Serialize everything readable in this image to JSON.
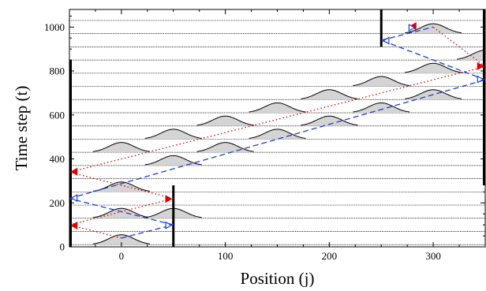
{
  "chart_data": {
    "type": "line",
    "xlabel": "Position (j)",
    "ylabel": "Time step (t)",
    "xlim": [
      -50,
      350
    ],
    "ylim": [
      0,
      1080
    ],
    "xticks": [
      0,
      100,
      200,
      300
    ],
    "yticks": [
      0,
      200,
      400,
      600,
      800,
      1000
    ],
    "minor_xtick_step": 25,
    "minor_ytick_step": 50,
    "grid": false,
    "baseline_times": [
      10,
      70,
      130,
      190,
      250,
      310,
      370,
      430,
      490,
      550,
      610,
      670,
      730,
      790,
      850,
      910,
      970,
      1030
    ],
    "pulse_peak_height_t": 45,
    "pulse_width_j": 12,
    "pulses": [
      {
        "t": 10,
        "x": 0
      },
      {
        "t": 130,
        "x": 0
      },
      {
        "t": 130,
        "x": 50
      },
      {
        "t": 250,
        "x": 0
      },
      {
        "t": 370,
        "x": 50
      },
      {
        "t": 430,
        "x": 0
      },
      {
        "t": 430,
        "x": 100
      },
      {
        "t": 490,
        "x": 50
      },
      {
        "t": 490,
        "x": 150
      },
      {
        "t": 550,
        "x": 100
      },
      {
        "t": 550,
        "x": 200
      },
      {
        "t": 610,
        "x": 150
      },
      {
        "t": 610,
        "x": 250
      },
      {
        "t": 670,
        "x": 200
      },
      {
        "t": 670,
        "x": 300
      },
      {
        "t": 730,
        "x": 250
      },
      {
        "t": 790,
        "x": 300
      },
      {
        "t": 850,
        "x": 350
      },
      {
        "t": 970,
        "x": 300
      }
    ],
    "walls": [
      {
        "x": -50,
        "t_from": 0,
        "t_to": 850
      },
      {
        "x": 50,
        "t_from": 0,
        "t_to": 280
      },
      {
        "x": 250,
        "t_from": 910,
        "t_to": 1080
      },
      {
        "x": 350,
        "t_from": 280,
        "t_to": 1080
      }
    ],
    "series": [
      {
        "color": "#dd0000",
        "style": "dotted",
        "marker": "filled-triangle",
        "segments": [
          {
            "from": [
              0,
              40
            ],
            "to": [
              -50,
              100
            ]
          },
          {
            "from": [
              -50,
              100
            ],
            "to": [
              50,
              220
            ]
          },
          {
            "from": [
              50,
              220
            ],
            "to": [
              -50,
              340
            ]
          },
          {
            "from": [
              -50,
              340
            ],
            "to": [
              350,
              820
            ]
          },
          {
            "from": [
              350,
              820
            ],
            "to": [
              300,
              1000
            ]
          }
        ]
      },
      {
        "color": "#1f3fd0",
        "style": "dashed",
        "marker": "open-triangle",
        "segments": [
          {
            "from": [
              0,
              40
            ],
            "to": [
              50,
              100
            ]
          },
          {
            "from": [
              50,
              100
            ],
            "to": [
              -50,
              220
            ]
          },
          {
            "from": [
              -50,
              220
            ],
            "to": [
              350,
              760
            ]
          },
          {
            "from": [
              350,
              760
            ],
            "to": [
              250,
              940
            ]
          },
          {
            "from": [
              250,
              940
            ],
            "to": [
              300,
              1000
            ]
          }
        ]
      }
    ],
    "arrowheads": [
      {
        "series": 0,
        "x": -48,
        "t": 97,
        "dir": "left"
      },
      {
        "series": 0,
        "x": 48,
        "t": 218,
        "dir": "right"
      },
      {
        "series": 0,
        "x": -48,
        "t": 342,
        "dir": "left"
      },
      {
        "series": 0,
        "x": 348,
        "t": 822,
        "dir": "right"
      },
      {
        "series": 0,
        "x": 278,
        "t": 1004,
        "dir": "left"
      },
      {
        "series": 1,
        "x": 48,
        "t": 98,
        "dir": "right"
      },
      {
        "series": 1,
        "x": -48,
        "t": 222,
        "dir": "left"
      },
      {
        "series": 1,
        "x": 348,
        "t": 762,
        "dir": "right"
      },
      {
        "series": 1,
        "x": 252,
        "t": 938,
        "dir": "left"
      },
      {
        "series": 1,
        "x": 282,
        "t": 997,
        "dir": "right"
      }
    ]
  }
}
